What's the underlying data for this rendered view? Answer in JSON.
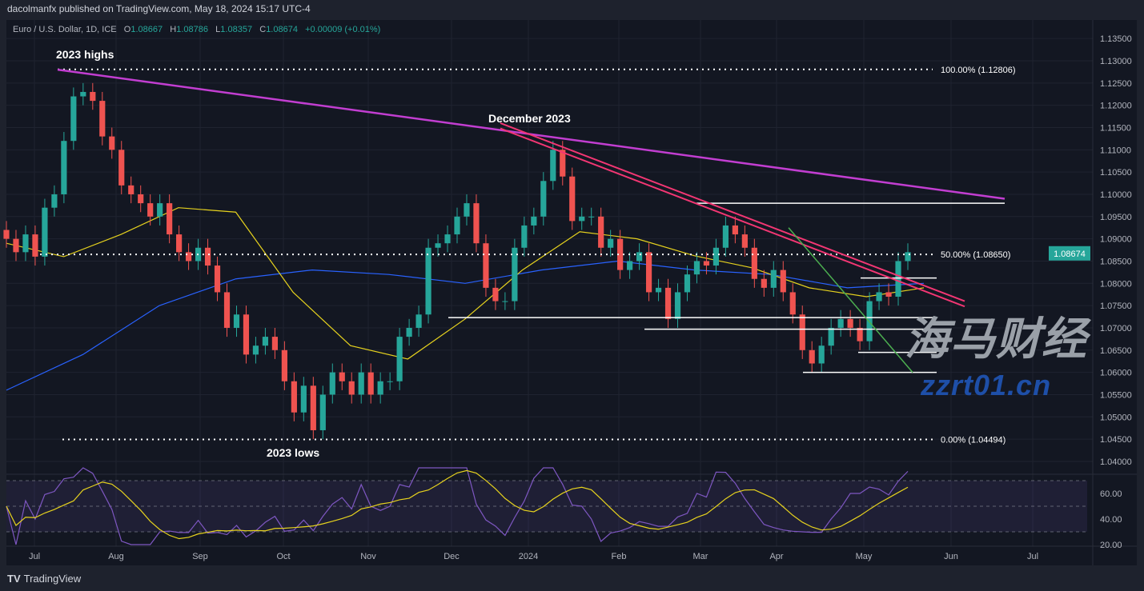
{
  "header": {
    "publisher_line": "dacolmanfx published on TradingView.com, May 18, 2024 15:17 UTC-4"
  },
  "legend": {
    "symbol": "Euro / U.S. Dollar, 1D, ICE",
    "o_label": "O",
    "o": "1.08667",
    "h_label": "H",
    "h": "1.08786",
    "l_label": "L",
    "l": "1.08357",
    "c_label": "C",
    "c": "1.08674",
    "change": "+0.00009 (+0.01%)"
  },
  "brand": {
    "name": "TradingView",
    "icon": "tradingview-logo-icon"
  },
  "watermark": {
    "line1": "海马财经",
    "line2": "zzrt01.cn"
  },
  "colors": {
    "up": "#26a69a",
    "down": "#ef5350",
    "sma_long": "#2962ff",
    "sma_short": "#e6d21e",
    "trend_long": "#c23ed1",
    "trend_dec": "#f23673",
    "trend_green": "#4caf50",
    "rsi": "#7e57c2",
    "rsi_ma": "#e6d21e",
    "bg": "#131722"
  },
  "chart_data": {
    "type": "candlestick",
    "symbol": "EUR/USD",
    "ylim": [
      1.0375,
      1.1375
    ],
    "yticks": [
      "1.13500",
      "1.13000",
      "1.12500",
      "1.12000",
      "1.11500",
      "1.11000",
      "1.10500",
      "1.10000",
      "1.09500",
      "1.09000",
      "1.08500",
      "1.08000",
      "1.07500",
      "1.07000",
      "1.06500",
      "1.06000",
      "1.05500",
      "1.05000",
      "1.04500",
      "1.04000"
    ],
    "xticks": [
      "Jul",
      "Aug",
      "Sep",
      "Oct",
      "Nov",
      "Dec",
      "2024",
      "Feb",
      "Mar",
      "Apr",
      "May",
      "Jun",
      "Jul"
    ],
    "last_price": "1.08674",
    "closes": [
      1.09,
      1.087,
      1.091,
      1.086,
      1.097,
      1.1,
      1.112,
      1.122,
      1.123,
      1.121,
      1.113,
      1.11,
      1.102,
      1.1,
      1.098,
      1.095,
      1.098,
      1.091,
      1.087,
      1.085,
      1.088,
      1.084,
      1.078,
      1.07,
      1.073,
      1.064,
      1.066,
      1.068,
      1.065,
      1.058,
      1.051,
      1.057,
      1.047,
      1.055,
      1.06,
      1.058,
      1.055,
      1.06,
      1.055,
      1.058,
      1.058,
      1.068,
      1.07,
      1.073,
      1.088,
      1.089,
      1.091,
      1.095,
      1.098,
      1.089,
      1.079,
      1.076,
      1.076,
      1.088,
      1.093,
      1.095,
      1.103,
      1.11,
      1.104,
      1.094,
      1.095,
      1.095,
      1.088,
      1.09,
      1.083,
      1.085,
      1.087,
      1.078,
      1.079,
      1.072,
      1.078,
      1.082,
      1.085,
      1.084,
      1.088,
      1.093,
      1.091,
      1.088,
      1.081,
      1.079,
      1.083,
      1.078,
      1.073,
      1.065,
      1.062,
      1.066,
      1.07,
      1.072,
      1.07,
      1.067,
      1.076,
      1.078,
      1.077,
      1.085,
      1.087
    ],
    "sma_long": [
      1.056,
      1.064,
      1.075,
      1.081,
      1.083,
      1.082,
      1.08,
      1.083,
      1.085,
      1.083,
      1.082,
      1.079,
      1.08
    ],
    "sma_short": [
      1.089,
      1.086,
      1.091,
      1.097,
      1.096,
      1.078,
      1.066,
      1.063,
      1.072,
      1.083,
      1.0916,
      1.09,
      1.0862,
      1.0835,
      1.079,
      1.077,
      1.079
    ],
    "fib_levels": [
      {
        "label": "100.00% (1.12806)",
        "price": 1.12806
      },
      {
        "label": "50.00% (1.08650)",
        "price": 1.0865
      },
      {
        "label": "0.00% (1.04494)",
        "price": 1.04494
      }
    ],
    "support_resistance": [
      1.098,
      1.0812,
      1.0723,
      1.0697,
      1.0645,
      1.06
    ],
    "annotations": {
      "highs": "2023 highs",
      "december": "December 2023",
      "lows": "2023 lows"
    },
    "rsi": {
      "ylim": [
        15,
        82
      ],
      "yticks": [
        "60.00",
        "40.00",
        "20.00"
      ],
      "bands": [
        70,
        30
      ]
    }
  }
}
